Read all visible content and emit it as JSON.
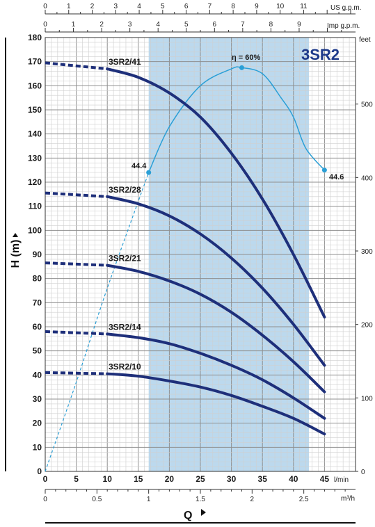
{
  "chart_data": {
    "type": "line",
    "model_label": "3SR2",
    "x_axis": {
      "label": "Q",
      "unit": "l/min",
      "range": [
        0,
        50
      ],
      "ticks": [
        0,
        5,
        10,
        15,
        20,
        25,
        30,
        35,
        40,
        45
      ]
    },
    "y_axis": {
      "label": "H  (m)",
      "range": [
        0,
        180
      ],
      "ticks": [
        0,
        10,
        20,
        30,
        40,
        50,
        60,
        70,
        80,
        90,
        100,
        110,
        120,
        130,
        140,
        150,
        160,
        170,
        180
      ]
    },
    "y_axis_right": {
      "unit": "feet",
      "ticks": [
        0,
        100,
        200,
        300,
        400,
        500
      ]
    },
    "top_axes": [
      {
        "unit": "US g.p.m.",
        "ticks": [
          0,
          1,
          2,
          3,
          4,
          5,
          6,
          7,
          8,
          9,
          10,
          11
        ]
      },
      {
        "unit": "Imp g.p.m.",
        "ticks": [
          0,
          1,
          2,
          3,
          4,
          5,
          6,
          7,
          8,
          9
        ]
      }
    ],
    "bottom_axis_secondary": {
      "unit": "m³/h",
      "ticks": [
        "0",
        "0.5",
        "1",
        "1.5",
        "2",
        "2.5"
      ],
      "tick_values": [
        0,
        0.5,
        1,
        1.5,
        2,
        2.5
      ]
    },
    "operating_range": [
      16.67,
      42.5
    ],
    "grid": true,
    "series": [
      {
        "name": "3SR2/41",
        "points": [
          [
            0,
            169.5
          ],
          [
            10,
            167
          ],
          [
            15,
            163.5
          ],
          [
            20,
            157
          ],
          [
            25,
            147
          ],
          [
            30,
            132
          ],
          [
            35,
            113
          ],
          [
            40,
            90
          ],
          [
            45,
            64
          ]
        ]
      },
      {
        "name": "3SR2/28",
        "points": [
          [
            0,
            115.5
          ],
          [
            10,
            114
          ],
          [
            15,
            111
          ],
          [
            20,
            106
          ],
          [
            25,
            98.5
          ],
          [
            30,
            88.5
          ],
          [
            35,
            76
          ],
          [
            40,
            61
          ],
          [
            45,
            44
          ]
        ]
      },
      {
        "name": "3SR2/21",
        "points": [
          [
            0,
            86.5
          ],
          [
            10,
            85.5
          ],
          [
            15,
            83
          ],
          [
            20,
            79
          ],
          [
            25,
            73.5
          ],
          [
            30,
            66
          ],
          [
            35,
            56.5
          ],
          [
            40,
            45.5
          ],
          [
            45,
            33
          ]
        ]
      },
      {
        "name": "3SR2/14",
        "points": [
          [
            0,
            58
          ],
          [
            10,
            57
          ],
          [
            15,
            55.5
          ],
          [
            20,
            53
          ],
          [
            25,
            49
          ],
          [
            30,
            44
          ],
          [
            35,
            38
          ],
          [
            40,
            30.5
          ],
          [
            45,
            22
          ]
        ]
      },
      {
        "name": "3SR2/10",
        "points": [
          [
            0,
            41
          ],
          [
            10,
            40.5
          ],
          [
            15,
            39.5
          ],
          [
            20,
            37.5
          ],
          [
            25,
            35
          ],
          [
            30,
            31.5
          ],
          [
            35,
            27
          ],
          [
            40,
            22
          ],
          [
            45,
            15.5
          ]
        ]
      }
    ],
    "efficiency_curve": {
      "label": "η = 60%",
      "start_label": "44.4",
      "end_label": "44.6",
      "points": [
        [
          0,
          0
        ],
        [
          5,
          37
        ],
        [
          10,
          76
        ],
        [
          16.67,
          124
        ],
        [
          20,
          143
        ],
        [
          25,
          160
        ],
        [
          30,
          167
        ],
        [
          31.67,
          167.5
        ],
        [
          35,
          165
        ],
        [
          38,
          155
        ],
        [
          40,
          147
        ],
        [
          42,
          134
        ],
        [
          45,
          125
        ]
      ],
      "markers": [
        [
          16.67,
          124
        ],
        [
          31.67,
          167.5
        ],
        [
          45,
          125
        ]
      ]
    }
  }
}
